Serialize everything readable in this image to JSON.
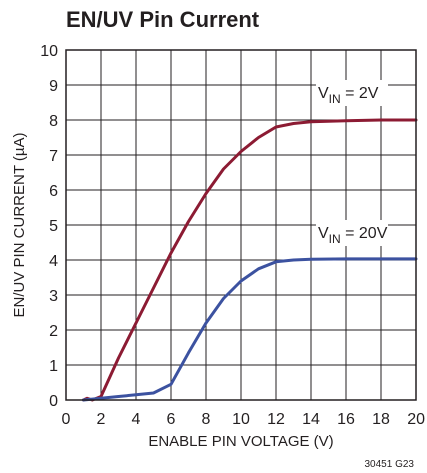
{
  "chart_data": {
    "type": "line",
    "title": "EN/UV Pin Current",
    "xlabel": "ENABLE PIN VOLTAGE (V)",
    "ylabel": "EN/UV PIN CURRENT (µA)",
    "xlim": [
      0,
      20
    ],
    "ylim": [
      0,
      10
    ],
    "x_ticks": [
      0,
      2,
      4,
      6,
      8,
      10,
      12,
      14,
      16,
      18,
      20
    ],
    "y_ticks": [
      0,
      1,
      2,
      3,
      4,
      5,
      6,
      7,
      8,
      9,
      10
    ],
    "grid": true,
    "figure_id": "30451 G23",
    "series": [
      {
        "name": "VIN = 2V",
        "label_main": "V",
        "label_sub": "IN",
        "label_rest": " = 2V",
        "color": "#8c1b33",
        "x": [
          1,
          1.2,
          1.5,
          2,
          3,
          4,
          5,
          6,
          7,
          8,
          9,
          10,
          11,
          12,
          13,
          14,
          16,
          18,
          20
        ],
        "y": [
          0,
          0.05,
          0,
          0.1,
          1.2,
          2.2,
          3.2,
          4.2,
          5.1,
          5.9,
          6.6,
          7.1,
          7.5,
          7.8,
          7.9,
          7.95,
          7.98,
          8.0,
          8.0
        ]
      },
      {
        "name": "VIN = 20V",
        "label_main": "V",
        "label_sub": "IN",
        "label_rest": " = 20V",
        "color": "#3c52a0",
        "x": [
          1,
          2,
          3,
          4,
          5,
          6,
          7,
          8,
          9,
          10,
          11,
          12,
          13,
          14,
          16,
          18,
          20
        ],
        "y": [
          0,
          0.05,
          0.1,
          0.15,
          0.2,
          0.45,
          1.35,
          2.2,
          2.9,
          3.4,
          3.75,
          3.95,
          4.0,
          4.02,
          4.03,
          4.03,
          4.03
        ]
      }
    ]
  }
}
